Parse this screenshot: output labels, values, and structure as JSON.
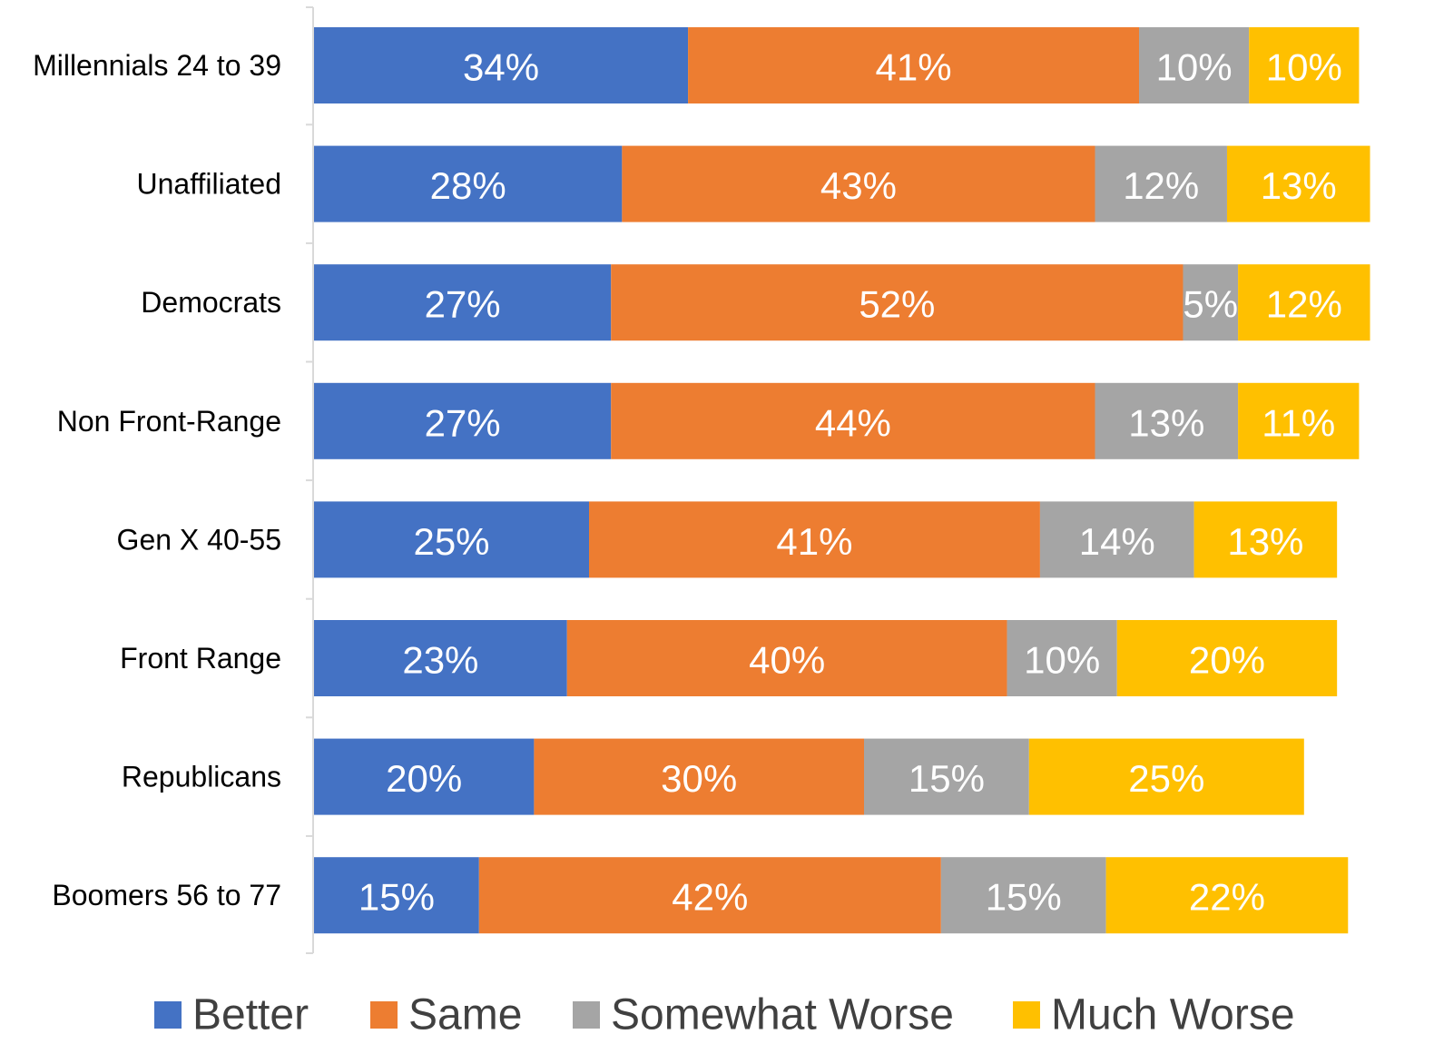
{
  "chart_data": {
    "type": "bar",
    "orientation": "horizontal",
    "stacked": true,
    "categories": [
      "Millennials 24 to 39",
      "Unaffiliated",
      "Democrats",
      "Non Front-Range",
      "Gen X 40-55",
      "Front Range",
      "Republicans",
      "Boomers 56 to 77"
    ],
    "series": [
      {
        "name": "Better",
        "color": "#4472C4",
        "values": [
          34,
          28,
          27,
          27,
          25,
          23,
          20,
          15
        ],
        "labels": [
          "34%",
          "28%",
          "27%",
          "27%",
          "25%",
          "23%",
          "20%",
          "15%"
        ]
      },
      {
        "name": "Same",
        "color": "#ED7D31",
        "values": [
          41,
          43,
          52,
          44,
          41,
          40,
          30,
          42
        ],
        "labels": [
          "41%",
          "43%",
          "52%",
          "44%",
          "41%",
          "40%",
          "30%",
          "42%"
        ]
      },
      {
        "name": "Somewhat Worse",
        "color": "#A5A5A5",
        "values": [
          10,
          12,
          5,
          13,
          14,
          10,
          15,
          15
        ],
        "labels": [
          "10%",
          "12%",
          "5%",
          "13%",
          "14%",
          "10%",
          "15%",
          "15%"
        ]
      },
      {
        "name": "Much Worse",
        "color": "#FFC000",
        "values": [
          10,
          13,
          12,
          11,
          13,
          20,
          25,
          22
        ],
        "labels": [
          "10%",
          "13%",
          "12%",
          "11%",
          "13%",
          "20%",
          "25%",
          "22%"
        ]
      }
    ],
    "title": "",
    "xlabel": "",
    "ylabel": "",
    "xlim": [
      0,
      100
    ],
    "grid": false,
    "legend_position": "bottom"
  }
}
